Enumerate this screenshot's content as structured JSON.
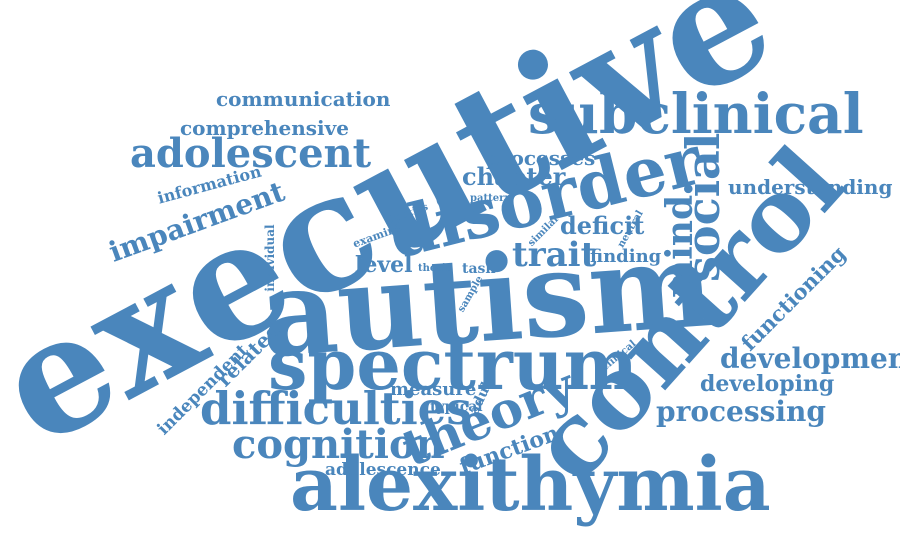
{
  "style": {
    "word_color": "#4a86bc",
    "background": "#ffffff"
  },
  "words": {
    "executive": "executive",
    "autism": "autism",
    "control": "control",
    "alexithymia": "alexithymia",
    "spectrum": "spectrum",
    "disorder": "disorder",
    "subclinical": "subclinical",
    "difficulties": "difficulties",
    "cognition": "cognition",
    "theory": "theory",
    "adolescent": "adolescent",
    "social": "social",
    "mind": "mind",
    "trait": "trait",
    "impairment": "impairment",
    "development": "development",
    "processing": "processing",
    "functioning": "functioning",
    "deficit": "deficit",
    "developing": "developing",
    "understanding": "understanding",
    "communication": "communication",
    "comprehensive": "comprehensive",
    "chapter": "chapter",
    "processes": "processes",
    "function": "function",
    "level": "level",
    "related": "related",
    "finding": "finding",
    "measure": "measure",
    "information": "information",
    "independent": "independent",
    "adolescence": "adolescence",
    "typical": "typical",
    "adult": "adult",
    "individual": "individual",
    "examine": "examine",
    "task": "task",
    "abilities": "abilities",
    "pattern": "pattern",
    "thesis": "thesis",
    "sample": "sample",
    "similar": "similar",
    "neutral": "neutral",
    "clinical": "clinical"
  }
}
